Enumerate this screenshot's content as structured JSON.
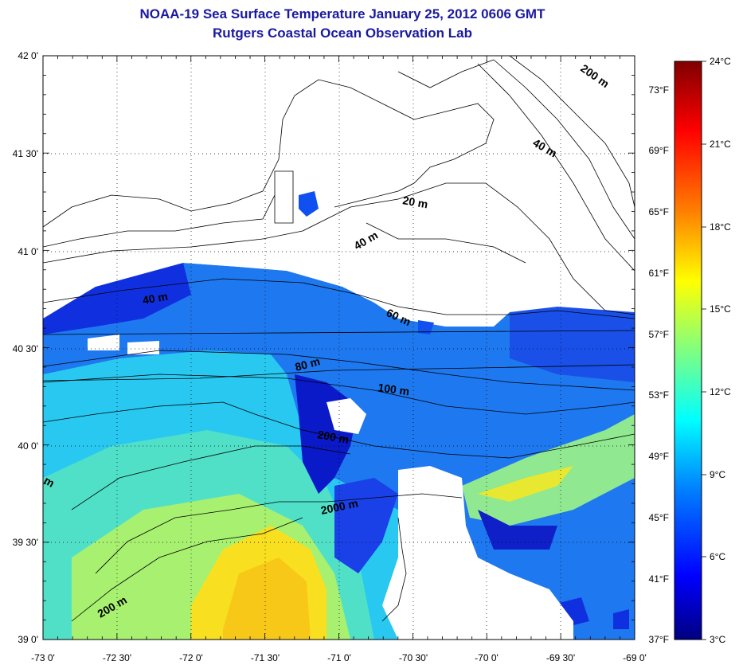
{
  "title": {
    "line1": "NOAA-19 Sea Surface Temperature January 25, 2012 0606 GMT",
    "line2": "Rutgers Coastal Ocean Observation Lab"
  },
  "lat_ticks": [
    "42 0'",
    "41 30'",
    "41 0'",
    "40 30'",
    "40 0'",
    "39 30'",
    "39 0'"
  ],
  "lon_ticks": [
    "-73 0'",
    "-72 30'",
    "-72 0'",
    "-71 30'",
    "-71 0'",
    "-70 30'",
    "-70 0'",
    "-69 30'",
    "-69 0'"
  ],
  "fahrenheit_ticks": [
    "73°F",
    "69°F",
    "65°F",
    "61°F",
    "57°F",
    "53°F",
    "49°F",
    "45°F",
    "41°F",
    "37°F"
  ],
  "celsius_ticks": [
    "24°C",
    "21°C",
    "18°C",
    "15°C",
    "12°C",
    "9°C",
    "6°C",
    "3°C"
  ],
  "contour_labels": [
    "200 m",
    "40 m",
    "20 m",
    "40 m",
    "40 m",
    "60 m",
    "80 m",
    "100 m",
    "200 m",
    "2000 m",
    "200 m",
    "m"
  ],
  "colors": {
    "title": "#1a1aa0",
    "land": "#ffffff",
    "colorbar": [
      "#000080",
      "#0000ff",
      "#0080ff",
      "#00ffff",
      "#80ff80",
      "#ffff00",
      "#ff8000",
      "#ff0000",
      "#800000"
    ]
  }
}
